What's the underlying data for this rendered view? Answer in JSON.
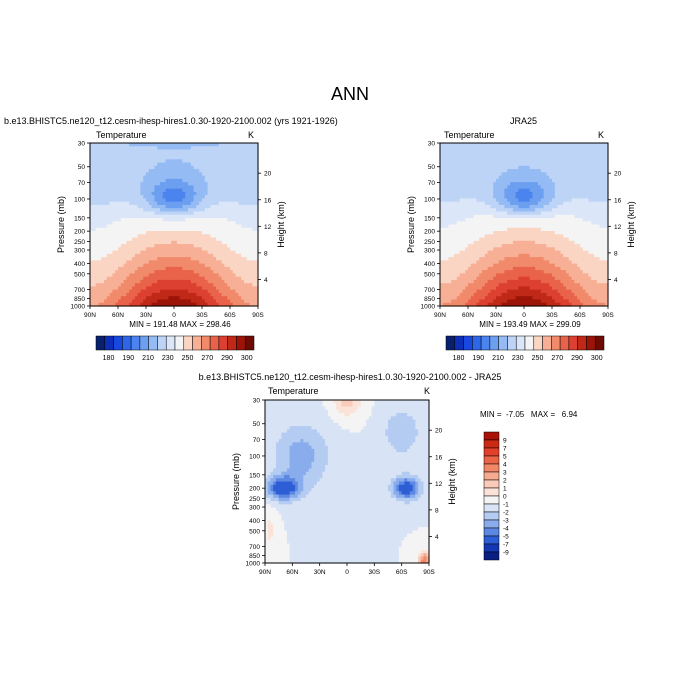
{
  "figure": {
    "title": "ANN"
  },
  "panels": [
    {
      "title": "b.e13.BHISTC5.ne120_t12.cesm-ihesp-hires1.0.30-1920-2100.002 (yrs 1921-1926)",
      "var_label": "Temperature",
      "units": "K",
      "stats": "MIN = 191.48   MAX = 298.46"
    },
    {
      "title": "JRA25",
      "var_label": "Temperature",
      "units": "K",
      "stats": "MIN = 193.49   MAX = 299.09"
    },
    {
      "title": "b.e13.BHISTC5.ne120_t12.cesm-ihesp-hires1.0.30-1920-2100.002 - JRA25",
      "var_label": "Temperature",
      "units": "K",
      "stats": "MIN =  -7.05   MAX =   6.94"
    }
  ],
  "axes": {
    "y_left_label": "Pressure (mb)",
    "y_right_label": "Height (km)",
    "pressure_ticks": [
      "30",
      "50",
      "70",
      "100",
      "150",
      "200",
      "250",
      "300",
      "400",
      "500",
      "700",
      "850",
      "1000"
    ],
    "lat_ticks": [
      "90N",
      "60N",
      "30N",
      "0",
      "30S",
      "60S",
      "90S"
    ],
    "height_ticks_top": [
      "20",
      "16",
      "12",
      "8",
      "4"
    ],
    "height_ticks_bottom": [
      "20",
      "16",
      "12",
      "8",
      "4"
    ]
  },
  "colorbar_abs": {
    "labels": [
      "180",
      "190",
      "210",
      "230",
      "250",
      "270",
      "290",
      "300"
    ],
    "colors": [
      "#08206e",
      "#0d2fb8",
      "#1848e0",
      "#2e66e8",
      "#4b84ee",
      "#6d9ff1",
      "#95bbf4",
      "#bdd4f7",
      "#dbe6f8",
      "#f4f4f4",
      "#fbd5c4",
      "#f7b096",
      "#f18a6b",
      "#e9634a",
      "#dc4030",
      "#c02818",
      "#9c1408",
      "#6e0a04"
    ]
  },
  "colorbar_diff": {
    "labels": [
      "9",
      "7",
      "5",
      "4",
      "3",
      "2",
      "1",
      "0",
      "-1",
      "-2",
      "-3",
      "-4",
      "-5",
      "-7",
      "-9"
    ],
    "colors": [
      "#a81208",
      "#cc2a14",
      "#e2402a",
      "#ec6448",
      "#f28868",
      "#f6ab90",
      "#f9cbb8",
      "#fbe3d8",
      "#f4f4f4",
      "#d8e4f6",
      "#b4ccf2",
      "#88acec",
      "#5c88e2",
      "#2e5ed6",
      "#1438b4",
      "#0a1e84"
    ]
  },
  "chart_data": [
    {
      "type": "heatmap",
      "title": "b.e13.BHISTC5.ne120_t12.cesm-ihesp-hires1.0.30-1920-2100.002 (yrs 1921-1926)",
      "xlabel": "",
      "ylabel": "Pressure (mb)",
      "y2label": "Height (km)",
      "x": [
        "90N",
        "60N",
        "30N",
        "0",
        "30S",
        "60S",
        "90S"
      ],
      "y": [
        30,
        50,
        70,
        100,
        150,
        200,
        250,
        300,
        400,
        500,
        700,
        850,
        1000
      ],
      "y_scale": "log (reversed)",
      "color_levels": [
        180,
        190,
        210,
        230,
        250,
        270,
        290,
        300
      ],
      "min": 191.48,
      "max": 298.46
    },
    {
      "type": "heatmap",
      "title": "JRA25",
      "xlabel": "",
      "ylabel": "Pressure (mb)",
      "y2label": "Height (km)",
      "x": [
        "90N",
        "60N",
        "30N",
        "0",
        "30S",
        "60S",
        "90S"
      ],
      "y": [
        30,
        50,
        70,
        100,
        150,
        200,
        250,
        300,
        400,
        500,
        700,
        850,
        1000
      ],
      "y_scale": "log (reversed)",
      "color_levels": [
        180,
        190,
        210,
        230,
        250,
        270,
        290,
        300
      ],
      "min": 193.49,
      "max": 299.09
    },
    {
      "type": "heatmap",
      "title": "b.e13.BHISTC5.ne120_t12.cesm-ihesp-hires1.0.30-1920-2100.002 - JRA25",
      "xlabel": "",
      "ylabel": "Pressure (mb)",
      "y2label": "Height (km)",
      "x": [
        "90N",
        "60N",
        "30N",
        "0",
        "30S",
        "60S",
        "90S"
      ],
      "y": [
        30,
        50,
        70,
        100,
        150,
        200,
        250,
        300,
        400,
        500,
        700,
        850,
        1000
      ],
      "y_scale": "log (reversed)",
      "color_levels": [
        -9,
        -7,
        -5,
        -4,
        -3,
        -2,
        -1,
        0,
        1,
        2,
        3,
        4,
        5,
        7,
        9
      ],
      "min": -7.05,
      "max": 6.94
    }
  ]
}
